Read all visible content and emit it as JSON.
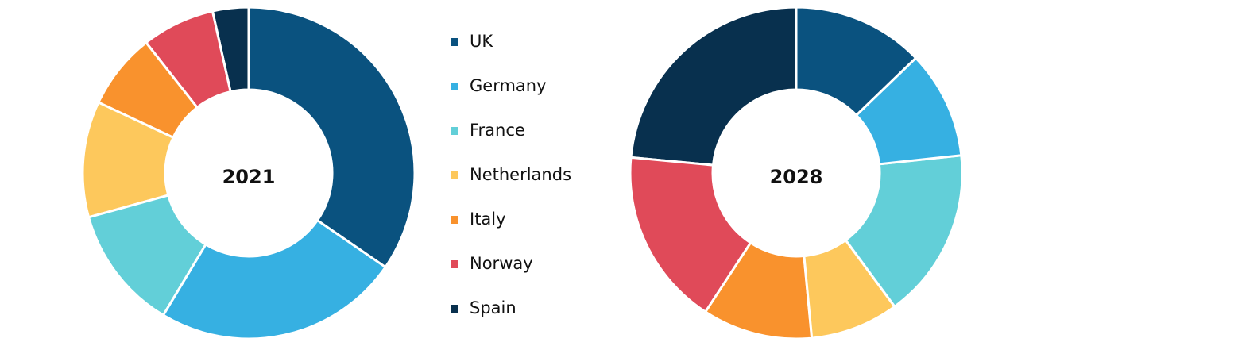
{
  "chart_data": [
    {
      "type": "donut",
      "title": "2021",
      "categories": [
        "UK",
        "Germany",
        "France",
        "Netherlands",
        "Italy",
        "Norway",
        "Spain"
      ],
      "values": [
        34.6,
        24.0,
        12.1,
        11.3,
        7.4,
        7.1,
        3.5
      ],
      "colors": [
        "#0a527f",
        "#36b0e2",
        "#62cfd8",
        "#fdc85c",
        "#f9922d",
        "#e04a59",
        "#08304e"
      ]
    },
    {
      "type": "donut",
      "title": "2028",
      "categories": [
        "UK",
        "Germany",
        "France",
        "Netherlands",
        "Italy",
        "Norway",
        "Spain"
      ],
      "values": [
        12.8,
        10.5,
        16.6,
        8.6,
        10.7,
        17.3,
        23.5
      ],
      "colors": [
        "#0a527f",
        "#36b0e2",
        "#62cfd8",
        "#fdc85c",
        "#f9922d",
        "#e04a59",
        "#08304e"
      ]
    }
  ]
}
